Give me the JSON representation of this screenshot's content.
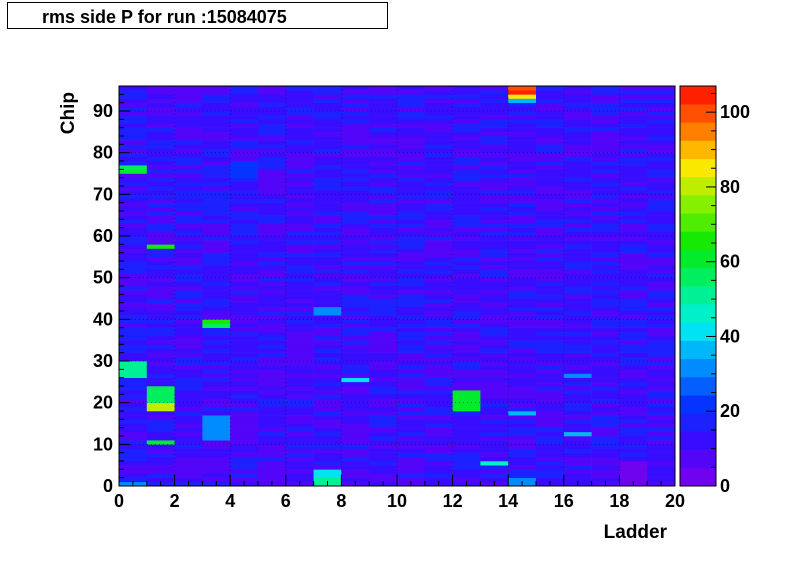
{
  "chart_data": {
    "type": "heatmap",
    "title": "rms side P for run :15084075",
    "xlabel": "Ladder",
    "ylabel": "Chip",
    "xlim": [
      0,
      20
    ],
    "ylim": [
      0,
      96
    ],
    "zlim": [
      0,
      107
    ],
    "x_ticks": [
      "0",
      "2",
      "4",
      "6",
      "8",
      "10",
      "12",
      "14",
      "16",
      "18",
      "20"
    ],
    "y_ticks": [
      "0",
      "10",
      "20",
      "30",
      "40",
      "50",
      "60",
      "70",
      "80",
      "90"
    ],
    "z_ticks": [
      "0",
      "20",
      "40",
      "60",
      "80",
      "100"
    ],
    "background_value": 12,
    "hotspots": [
      {
        "ladder": 14,
        "chip_from": 95,
        "chip_to": 96,
        "value": 98
      },
      {
        "ladder": 14,
        "chip_from": 94,
        "chip_to": 95,
        "value": 104
      },
      {
        "ladder": 14,
        "chip_from": 93,
        "chip_to": 94,
        "value": 85
      },
      {
        "ladder": 14,
        "chip_from": 92,
        "chip_to": 93,
        "value": 35
      },
      {
        "ladder": 0,
        "chip_from": 76,
        "chip_to": 77,
        "value": 55
      },
      {
        "ladder": 0,
        "chip_from": 75,
        "chip_to": 76,
        "value": 62
      },
      {
        "ladder": 1,
        "chip_from": 57,
        "chip_to": 58,
        "value": 65
      },
      {
        "ladder": 3,
        "chip_from": 39,
        "chip_to": 40,
        "value": 68
      },
      {
        "ladder": 3,
        "chip_from": 38,
        "chip_to": 39,
        "value": 55
      },
      {
        "ladder": 0,
        "chip_from": 26,
        "chip_to": 30,
        "value": 52
      },
      {
        "ladder": 1,
        "chip_from": 20,
        "chip_to": 24,
        "value": 55
      },
      {
        "ladder": 1,
        "chip_from": 18,
        "chip_to": 20,
        "value": 82
      },
      {
        "ladder": 1,
        "chip_from": 10,
        "chip_to": 11,
        "value": 60
      },
      {
        "ladder": 12,
        "chip_from": 18,
        "chip_to": 23,
        "value": 62
      },
      {
        "ladder": 3,
        "chip_from": 11,
        "chip_to": 17,
        "value": 30
      },
      {
        "ladder": 7,
        "chip_from": 0,
        "chip_to": 2,
        "value": 52
      },
      {
        "ladder": 7,
        "chip_from": 2,
        "chip_to": 4,
        "value": 40
      },
      {
        "ladder": 14,
        "chip_from": 0,
        "chip_to": 2,
        "value": 32
      },
      {
        "ladder": 13,
        "chip_from": 5,
        "chip_to": 6,
        "value": 45
      },
      {
        "ladder": 0,
        "chip_from": 0,
        "chip_to": 1,
        "value": 30
      },
      {
        "ladder": 4,
        "chip_from": 11,
        "chip_to": 17,
        "value": 5
      },
      {
        "ladder": 17,
        "chip_from": 80,
        "chip_to": 85,
        "value": 5
      },
      {
        "ladder": 5,
        "chip_from": 0,
        "chip_to": 6,
        "value": 5
      },
      {
        "ladder": 18,
        "chip_from": 0,
        "chip_to": 6,
        "value": 4
      },
      {
        "ladder": 9,
        "chip_from": 32,
        "chip_to": 36,
        "value": 6
      },
      {
        "ladder": 6,
        "chip_from": 30,
        "chip_to": 36,
        "value": 7
      },
      {
        "ladder": 5,
        "chip_from": 72,
        "chip_to": 76,
        "value": 6
      },
      {
        "ladder": 4,
        "chip_from": 74,
        "chip_to": 78,
        "value": 24
      },
      {
        "ladder": 3,
        "chip_from": 13,
        "chip_to": 16,
        "value": 32
      },
      {
        "ladder": 16,
        "chip_from": 12,
        "chip_to": 13,
        "value": 36
      },
      {
        "ladder": 14,
        "chip_from": 17,
        "chip_to": 18,
        "value": 38
      },
      {
        "ladder": 16,
        "chip_from": 26,
        "chip_to": 27,
        "value": 34
      },
      {
        "ladder": 8,
        "chip_from": 25,
        "chip_to": 26,
        "value": 40
      },
      {
        "ladder": 7,
        "chip_from": 41,
        "chip_to": 43,
        "value": 30
      },
      {
        "ladder": 15,
        "chip_from": 38,
        "chip_to": 40,
        "value": 5
      },
      {
        "ladder": 14,
        "chip_from": 88,
        "chip_to": 89,
        "value": 5
      },
      {
        "ladder": 17,
        "chip_from": 92,
        "chip_to": 94,
        "value": 5
      }
    ]
  }
}
